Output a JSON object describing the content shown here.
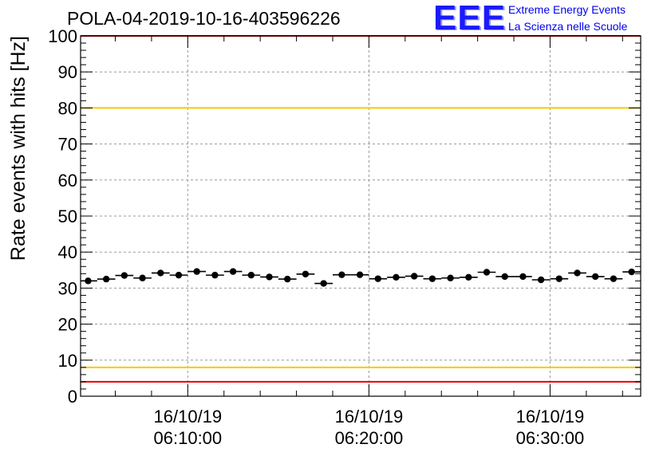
{
  "header": {
    "title": "POLA-04-2019-10-16-403596226",
    "logo": "EEE",
    "logo_line1": "Extreme Energy Events",
    "logo_line2": "La Scienza nelle Scuole"
  },
  "colors": {
    "red_line": "#ee0000",
    "yellow_line": "#f2cc00",
    "grid": "#999999",
    "marker": "#000000",
    "logo": "#1a1aff"
  },
  "chart_data": {
    "type": "scatter",
    "title": "POLA-04-2019-10-16-403596226",
    "ylabel": "Rate events with hits [Hz]",
    "xlabel": "",
    "ylim": [
      0,
      100
    ],
    "xlim": [
      "06:04:05",
      "06:35:00"
    ],
    "grid": true,
    "yticks": [
      "0",
      "10",
      "20",
      "30",
      "40",
      "50",
      "60",
      "70",
      "80",
      "90",
      "100"
    ],
    "xticks": [
      {
        "date": "16/10/19",
        "time": "06:10:00"
      },
      {
        "date": "16/10/19",
        "time": "06:20:00"
      },
      {
        "date": "16/10/19",
        "time": "06:30:00"
      }
    ],
    "reference_lines": [
      {
        "y": 100,
        "color": "red"
      },
      {
        "y": 80,
        "color": "yellow"
      },
      {
        "y": 8,
        "color": "yellow"
      },
      {
        "y": 4,
        "color": "red"
      }
    ],
    "series": [
      {
        "x": [
          "06:04:30",
          "06:05:30",
          "06:06:30",
          "06:07:30",
          "06:08:30",
          "06:09:30",
          "06:10:30",
          "06:11:30",
          "06:12:30",
          "06:13:30",
          "06:14:30",
          "06:15:30",
          "06:16:30",
          "06:17:30",
          "06:18:30",
          "06:19:30",
          "06:20:30",
          "06:21:30",
          "06:22:30",
          "06:23:30",
          "06:24:30",
          "06:25:30",
          "06:26:30",
          "06:27:30",
          "06:28:30",
          "06:29:30",
          "06:30:30",
          "06:31:30",
          "06:32:30",
          "06:33:30",
          "06:34:30"
        ],
        "values": [
          32.0,
          32.5,
          33.5,
          32.8,
          34.2,
          33.6,
          34.6,
          33.6,
          34.6,
          33.6,
          33.1,
          32.5,
          33.9,
          31.3,
          33.7,
          33.7,
          32.6,
          33.0,
          33.3,
          32.6,
          32.8,
          33.0,
          34.4,
          33.2,
          33.2,
          32.3,
          32.6,
          34.2,
          33.2,
          32.6,
          34.5
        ]
      }
    ]
  }
}
